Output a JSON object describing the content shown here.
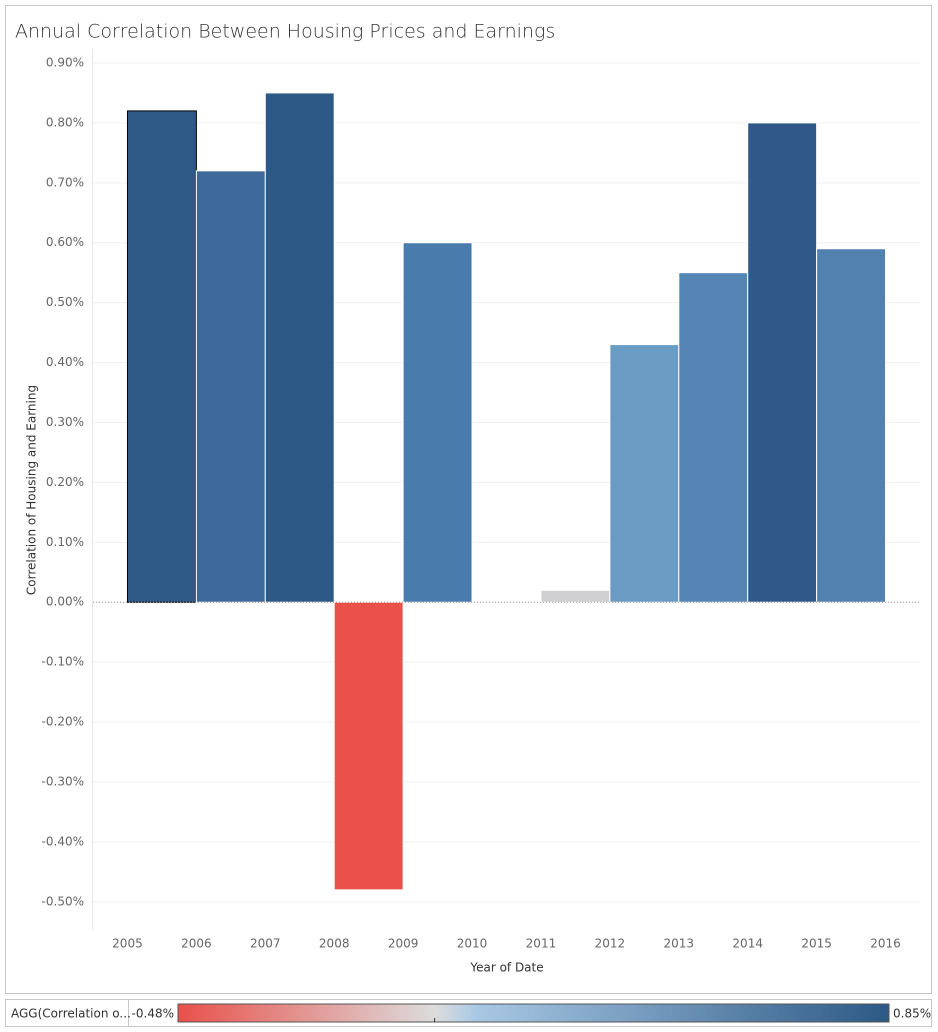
{
  "chart_data": {
    "type": "bar",
    "title": "Annual Correlation Between Housing Prices and Earnings",
    "y_label": "Correlation of Housing and Earning",
    "x_label": "Year of Date",
    "x": [
      2005,
      2006,
      2007,
      2008,
      2009,
      2010,
      2011,
      2012,
      2013,
      2014,
      2015
    ],
    "bar_width": 1,
    "values": [
      0.82,
      0.72,
      0.85,
      -0.48,
      0.6,
      -0.002,
      0.02,
      0.43,
      0.55,
      0.8,
      0.59
    ],
    "colors": [
      "#2f5a88",
      "#3d6a9a",
      "#2d5987",
      "#e9514a",
      "#4a7bad",
      "#d3d3d3",
      "#d0d0d2",
      "#6a9bc3",
      "#5485b5",
      "#30598a",
      "#5281b0"
    ],
    "selected_index": 0,
    "xlim": [
      2004.5,
      2016.5
    ],
    "xticks": [
      2005,
      2006,
      2007,
      2008,
      2009,
      2010,
      2011,
      2012,
      2013,
      2014,
      2015,
      2016
    ],
    "ylim": [
      -0.547,
      0.925
    ],
    "yticks": [
      {
        "value": 0.9,
        "label": "0.90%"
      },
      {
        "value": 0.8,
        "label": "0.80%"
      },
      {
        "value": 0.7,
        "label": "0.70%"
      },
      {
        "value": 0.6,
        "label": "0.60%"
      },
      {
        "value": 0.5,
        "label": "0.50%"
      },
      {
        "value": 0.4,
        "label": "0.40%"
      },
      {
        "value": 0.3,
        "label": "0.30%"
      },
      {
        "value": 0.2,
        "label": "0.20%"
      },
      {
        "value": 0.1,
        "label": "0.10%"
      },
      {
        "value": 0,
        "label": "0.00%"
      },
      {
        "value": -0.1,
        "label": "-0.10%"
      },
      {
        "value": -0.2,
        "label": "-0.20%"
      },
      {
        "value": -0.3,
        "label": "-0.30%"
      },
      {
        "value": -0.4,
        "label": "-0.40%"
      },
      {
        "value": -0.5,
        "label": "-0.50%"
      }
    ],
    "grid": true,
    "legend": {
      "title": "AGG(Correlation o...",
      "min": {
        "value": -0.48,
        "label": "-0.48%"
      },
      "max": {
        "value": 0.85,
        "label": "0.85%"
      },
      "stops": [
        {
          "value": -0.48,
          "color": "#e9514a"
        },
        {
          "value": 0,
          "color": "#dcdcdc"
        },
        {
          "value": 0.08,
          "color": "#a8c8e4"
        },
        {
          "value": 0.85,
          "color": "#2c5985"
        }
      ]
    }
  }
}
